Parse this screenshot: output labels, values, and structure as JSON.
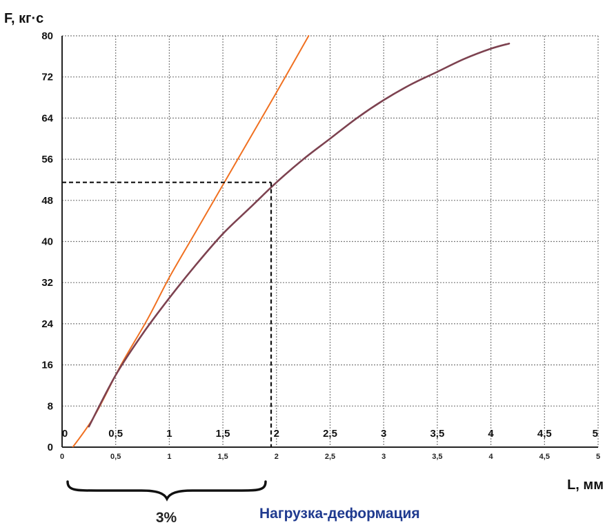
{
  "chart_data": {
    "type": "line",
    "title": "Нагрузка-деформация",
    "xlabel": "L, мм",
    "ylabel": "F, кг·с",
    "xlim": [
      0,
      5
    ],
    "ylim": [
      0,
      80
    ],
    "x_ticks": [
      "0",
      "0,5",
      "1",
      "1,5",
      "2",
      "2,5",
      "3",
      "3,5",
      "4",
      "4,5",
      "5"
    ],
    "x_ticks_values": [
      0,
      0.5,
      1,
      1.5,
      2,
      2.5,
      3,
      3.5,
      4,
      4.5,
      5
    ],
    "y_ticks": [
      "0",
      "8",
      "16",
      "24",
      "32",
      "40",
      "48",
      "56",
      "64",
      "72",
      "80"
    ],
    "y_ticks_values": [
      0,
      8,
      16,
      24,
      32,
      40,
      48,
      56,
      64,
      72,
      80
    ],
    "grid": true,
    "series": [
      {
        "color": "#f07020",
        "x": [
          0.1,
          0.3,
          0.55,
          0.8,
          1.0,
          1.25,
          1.5,
          1.75,
          2.0,
          2.3
        ],
        "y": [
          0,
          6,
          16,
          25,
          33,
          42,
          51,
          60,
          69,
          80
        ]
      },
      {
        "color": "#7d4250",
        "x": [
          0.25,
          0.5,
          0.75,
          1.0,
          1.25,
          1.5,
          1.75,
          2.0,
          2.25,
          2.5,
          2.75,
          3.0,
          3.25,
          3.5,
          3.75,
          4.0,
          4.17
        ],
        "y": [
          4,
          14,
          22,
          29,
          35.5,
          41.5,
          46.5,
          51.5,
          56,
          60,
          64,
          67.5,
          70.5,
          73,
          75.5,
          77.5,
          78.5
        ]
      }
    ],
    "marker": {
      "x": 1.95,
      "y": 51.5
    },
    "annotation": "3%",
    "annotation_range": [
      0,
      1.95
    ],
    "colors": {
      "title": "#1f3a8f",
      "grid": "#7a7a7a",
      "axis": "#222222",
      "guide": "#111111"
    }
  }
}
